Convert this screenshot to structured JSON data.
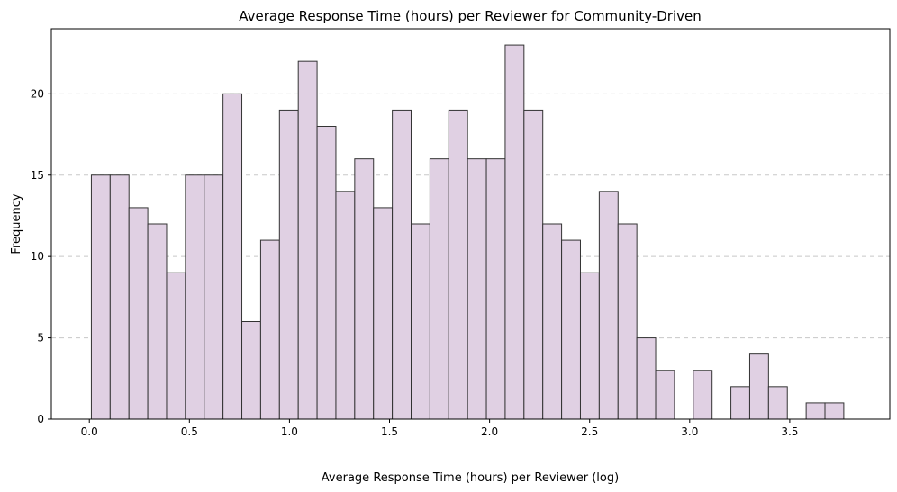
{
  "chart_data": {
    "type": "bar",
    "title": "Average Response Time (hours) per Reviewer for Community-Driven",
    "xlabel": "Average Response Time (hours) per Reviewer (log)",
    "ylabel": "Frequency",
    "xlim": [
      -0.19,
      4.0
    ],
    "ylim": [
      0,
      24
    ],
    "x_ticks": [
      0.0,
      0.5,
      1.0,
      1.5,
      2.0,
      2.5,
      3.0,
      3.5
    ],
    "x_tick_labels": [
      "0.0",
      "0.5",
      "1.0",
      "1.5",
      "2.0",
      "2.5",
      "3.0",
      "3.5"
    ],
    "y_ticks": [
      0,
      5,
      10,
      15,
      20
    ],
    "y_tick_labels": [
      "0",
      "5",
      "10",
      "15",
      "20"
    ],
    "grid": "y-dashed",
    "bar_fill": "#e0d0e3",
    "bar_edge": "#333333",
    "grid_color": "#c8c8c8",
    "bins": [
      {
        "x0": 0.01,
        "x1": 0.104,
        "count": 15
      },
      {
        "x0": 0.104,
        "x1": 0.198,
        "count": 15
      },
      {
        "x0": 0.198,
        "x1": 0.292,
        "count": 13
      },
      {
        "x0": 0.292,
        "x1": 0.386,
        "count": 12
      },
      {
        "x0": 0.386,
        "x1": 0.48,
        "count": 9
      },
      {
        "x0": 0.48,
        "x1": 0.574,
        "count": 15
      },
      {
        "x0": 0.574,
        "x1": 0.668,
        "count": 15
      },
      {
        "x0": 0.668,
        "x1": 0.762,
        "count": 20
      },
      {
        "x0": 0.762,
        "x1": 0.856,
        "count": 6
      },
      {
        "x0": 0.856,
        "x1": 0.95,
        "count": 11
      },
      {
        "x0": 0.95,
        "x1": 1.044,
        "count": 19
      },
      {
        "x0": 1.044,
        "x1": 1.138,
        "count": 22
      },
      {
        "x0": 1.138,
        "x1": 1.232,
        "count": 18
      },
      {
        "x0": 1.232,
        "x1": 1.326,
        "count": 14
      },
      {
        "x0": 1.326,
        "x1": 1.42,
        "count": 16
      },
      {
        "x0": 1.42,
        "x1": 1.514,
        "count": 13
      },
      {
        "x0": 1.514,
        "x1": 1.608,
        "count": 19
      },
      {
        "x0": 1.608,
        "x1": 1.702,
        "count": 12
      },
      {
        "x0": 1.702,
        "x1": 1.796,
        "count": 16
      },
      {
        "x0": 1.796,
        "x1": 1.89,
        "count": 19
      },
      {
        "x0": 1.89,
        "x1": 1.984,
        "count": 16
      },
      {
        "x0": 1.984,
        "x1": 2.078,
        "count": 16
      },
      {
        "x0": 2.078,
        "x1": 2.172,
        "count": 23
      },
      {
        "x0": 2.172,
        "x1": 2.266,
        "count": 19
      },
      {
        "x0": 2.266,
        "x1": 2.36,
        "count": 12
      },
      {
        "x0": 2.36,
        "x1": 2.454,
        "count": 11
      },
      {
        "x0": 2.454,
        "x1": 2.548,
        "count": 9
      },
      {
        "x0": 2.548,
        "x1": 2.642,
        "count": 14
      },
      {
        "x0": 2.642,
        "x1": 2.736,
        "count": 12
      },
      {
        "x0": 2.736,
        "x1": 2.83,
        "count": 5
      },
      {
        "x0": 2.83,
        "x1": 2.924,
        "count": 3
      },
      {
        "x0": 2.924,
        "x1": 3.018,
        "count": 0
      },
      {
        "x0": 3.018,
        "x1": 3.112,
        "count": 3
      },
      {
        "x0": 3.112,
        "x1": 3.206,
        "count": 0
      },
      {
        "x0": 3.206,
        "x1": 3.3,
        "count": 2
      },
      {
        "x0": 3.3,
        "x1": 3.394,
        "count": 4
      },
      {
        "x0": 3.394,
        "x1": 3.488,
        "count": 2
      },
      {
        "x0": 3.488,
        "x1": 3.582,
        "count": 0
      },
      {
        "x0": 3.582,
        "x1": 3.676,
        "count": 1
      },
      {
        "x0": 3.676,
        "x1": 3.77,
        "count": 1
      }
    ]
  }
}
